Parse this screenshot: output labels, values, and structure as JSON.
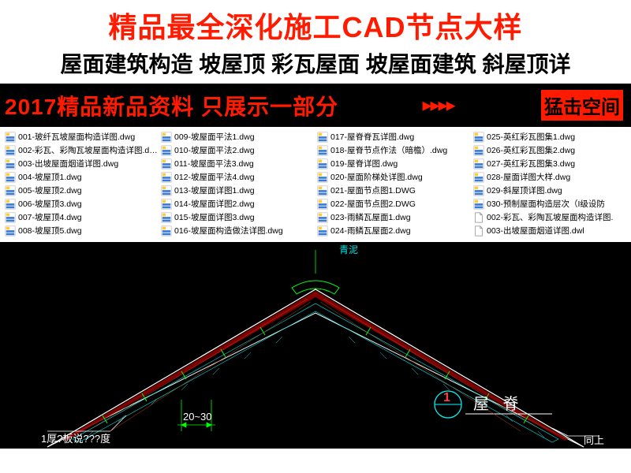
{
  "banner": {
    "title_main": "精品最全深化施工CAD节点大样",
    "title_sub": "屋面建筑构造 坡屋顶 彩瓦屋面 坡屋面建筑 斜屋顶详",
    "red_text": "2017精品新品资料 只展示一部分",
    "cta": "猛击空间",
    "title_color": "#ff1a00",
    "sub_color": "#000000"
  },
  "files": {
    "col1": [
      {
        "name": "001-玻纤瓦坡屋面构造详图.dwg",
        "type": "dwg"
      },
      {
        "name": "002-彩瓦、彩陶瓦坡屋面构造详图.dwg",
        "type": "dwg"
      },
      {
        "name": "003-出坡屋面烟道详图.dwg",
        "type": "dwg"
      },
      {
        "name": "004-坡屋顶1.dwg",
        "type": "dwg"
      },
      {
        "name": "005-坡屋顶2.dwg",
        "type": "dwg"
      },
      {
        "name": "006-坡屋顶3.dwg",
        "type": "dwg"
      },
      {
        "name": "007-坡屋顶4.dwg",
        "type": "dwg"
      },
      {
        "name": "008-坡屋顶5.dwg",
        "type": "dwg"
      }
    ],
    "col2": [
      {
        "name": "009-坡屋面平法1.dwg",
        "type": "dwg"
      },
      {
        "name": "010-坡屋面平法2.dwg",
        "type": "dwg"
      },
      {
        "name": "011-坡屋面平法3.dwg",
        "type": "dwg"
      },
      {
        "name": "012-坡屋面平法4.dwg",
        "type": "dwg"
      },
      {
        "name": "013-坡屋面详图1.dwg",
        "type": "dwg"
      },
      {
        "name": "014-坡屋面详图2.dwg",
        "type": "dwg"
      },
      {
        "name": "015-坡屋面详图3.dwg",
        "type": "dwg"
      },
      {
        "name": "016-坡屋面构造做法详图.dwg",
        "type": "dwg"
      }
    ],
    "col3": [
      {
        "name": "017-屋脊脊瓦详图.dwg",
        "type": "dwg"
      },
      {
        "name": "018-屋脊节点作法（暗檐）.dwg",
        "type": "dwg"
      },
      {
        "name": "019-屋脊详图.dwg",
        "type": "dwg"
      },
      {
        "name": "020-屋面阶梯处详图.dwg",
        "type": "dwg"
      },
      {
        "name": "021-屋面节点图1.DWG",
        "type": "dwg"
      },
      {
        "name": "022-屋面节点图2.DWG",
        "type": "dwg"
      },
      {
        "name": "023-雨鳞瓦屋面1.dwg",
        "type": "dwg"
      },
      {
        "name": "024-雨鳞瓦屋面2.dwg",
        "type": "dwg"
      }
    ],
    "col4": [
      {
        "name": "025-英红彩瓦图集1.dwg",
        "type": "dwg"
      },
      {
        "name": "026-英红彩瓦图集2.dwg",
        "type": "dwg"
      },
      {
        "name": "027-英红彩瓦图集3.dwg",
        "type": "dwg"
      },
      {
        "name": "028-屋面详图大样.dwg",
        "type": "dwg"
      },
      {
        "name": "029-斜屋顶详图.dwg",
        "type": "dwg"
      },
      {
        "name": "030-预制屋面构造层次（I级设防",
        "type": "dwg"
      },
      {
        "name": "002-彩瓦、彩陶瓦坡屋面构造详图.",
        "type": "plain"
      },
      {
        "name": "003-出坡屋面烟道详图.dwl",
        "type": "plain"
      }
    ]
  },
  "cad": {
    "label_ridge": "屋 脊",
    "label_circle": "1",
    "dim_text": "20~30",
    "leader_text": "1厚?板说???度",
    "label_up": "同上",
    "label_top": "青泥",
    "colors": {
      "bg": "#000000",
      "line_white": "#ffffff",
      "line_green": "#00ff00",
      "line_cyan": "#00ffff",
      "line_red": "#ff0000",
      "hatch_brick": "#8b0000",
      "hatch_insul": "#00e6e6",
      "text_white": "#ffffff"
    }
  }
}
